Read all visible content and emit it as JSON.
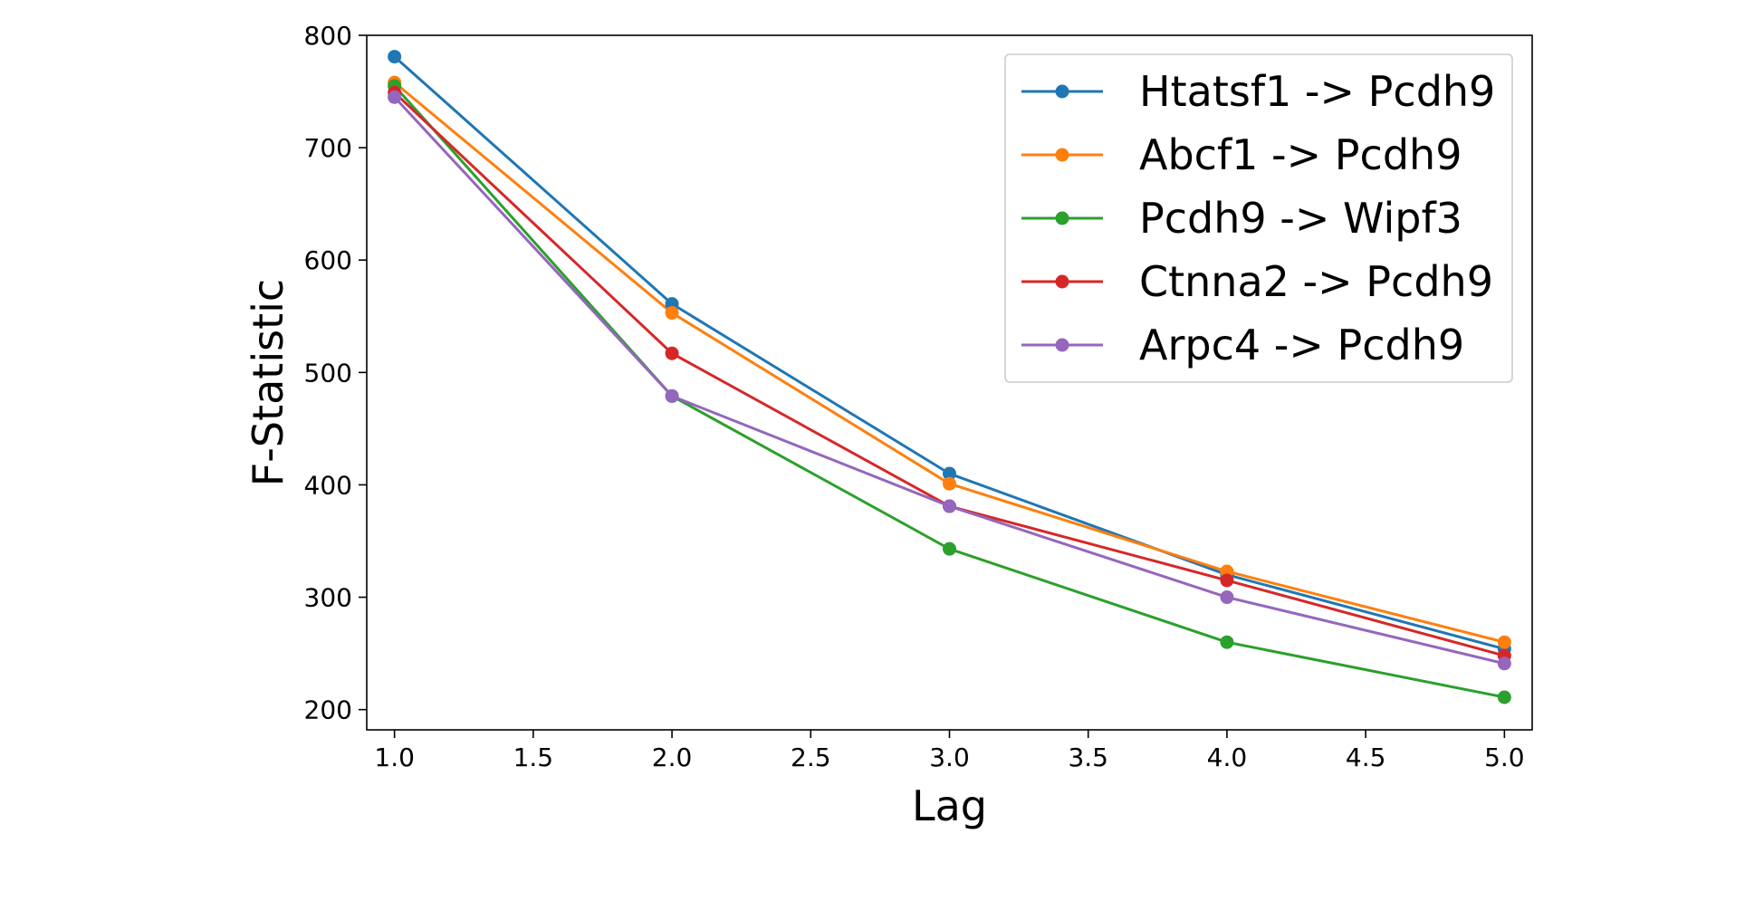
{
  "chart_data": {
    "type": "line",
    "title": "",
    "xlabel": "Lag",
    "ylabel": "F-Statistic",
    "xlim": [
      0.9,
      5.1
    ],
    "ylim": [
      182,
      800
    ],
    "xticks": [
      1.0,
      1.5,
      2.0,
      2.5,
      3.0,
      3.5,
      4.0,
      4.5,
      5.0
    ],
    "xtick_labels": [
      "1.0",
      "1.5",
      "2.0",
      "2.5",
      "3.0",
      "3.5",
      "4.0",
      "4.5",
      "5.0"
    ],
    "yticks": [
      200,
      300,
      400,
      500,
      600,
      700,
      800
    ],
    "ytick_labels": [
      "200",
      "300",
      "400",
      "500",
      "600",
      "700",
      "800"
    ],
    "grid": false,
    "legend_position": "top-right",
    "x": [
      1,
      2,
      3,
      4,
      5
    ],
    "series": [
      {
        "name": "Htatsf1 -> Pcdh9",
        "color": "#1f77b4",
        "values": [
          781,
          561,
          410,
          320,
          254
        ]
      },
      {
        "name": "Abcf1 -> Pcdh9",
        "color": "#ff7f0e",
        "values": [
          758,
          553,
          401,
          323,
          260
        ]
      },
      {
        "name": "Pcdh9 -> Wipf3",
        "color": "#2ca02c",
        "values": [
          755,
          479,
          343,
          260,
          211
        ]
      },
      {
        "name": "Ctnna2 -> Pcdh9",
        "color": "#d62728",
        "values": [
          749,
          517,
          381,
          315,
          248
        ]
      },
      {
        "name": "Arpc4 -> Pcdh9",
        "color": "#9467bd",
        "values": [
          745,
          479,
          381,
          300,
          241
        ]
      }
    ]
  }
}
